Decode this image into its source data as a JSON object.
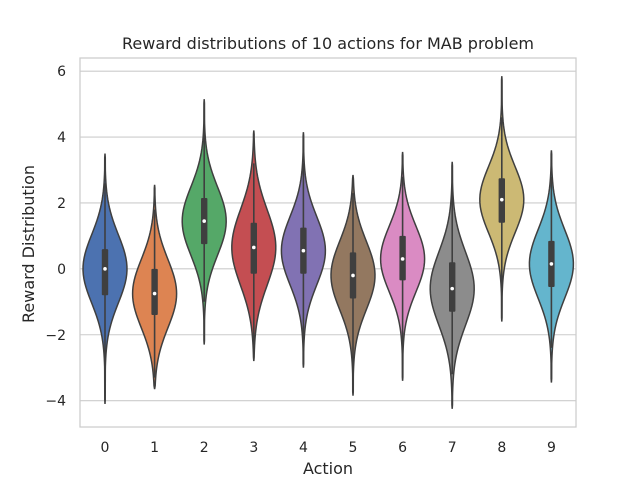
{
  "chart_data": {
    "type": "violin",
    "title": "Reward distributions of 10 actions for MAB problem",
    "xlabel": "Action",
    "ylabel": "Reward Distribution",
    "ylim": [
      -4.8,
      6.4
    ],
    "yticks": [
      -4,
      -2,
      0,
      2,
      4,
      6
    ],
    "ytick_labels": [
      "−4",
      "−2",
      "0",
      "2",
      "4",
      "6"
    ],
    "categories": [
      "0",
      "1",
      "2",
      "3",
      "4",
      "5",
      "6",
      "7",
      "8",
      "9"
    ],
    "grid": true,
    "series": [
      {
        "category": "0",
        "color": "#4c72b0",
        "min": -4.1,
        "max": 3.5,
        "q1": -0.8,
        "median": 0.0,
        "q3": 0.6,
        "whisker_low": -2.7,
        "whisker_high": 2.6
      },
      {
        "category": "1",
        "color": "#dd8452",
        "min": -3.65,
        "max": 2.55,
        "q1": -1.4,
        "median": -0.75,
        "q3": 0.0,
        "whisker_low": -3.3,
        "whisker_high": 1.8
      },
      {
        "category": "2",
        "color": "#55a868",
        "min": -2.3,
        "max": 5.15,
        "q1": 0.75,
        "median": 1.45,
        "q3": 2.15,
        "whisker_low": -1.0,
        "whisker_high": 4.3
      },
      {
        "category": "3",
        "color": "#c44e52",
        "min": -2.8,
        "max": 4.2,
        "q1": -0.15,
        "median": 0.65,
        "q3": 1.4,
        "whisker_low": -2.3,
        "whisker_high": 3.2
      },
      {
        "category": "4",
        "color": "#8172b3",
        "min": -3.0,
        "max": 4.15,
        "q1": -0.15,
        "median": 0.55,
        "q3": 1.25,
        "whisker_low": -2.3,
        "whisker_high": 3.2
      },
      {
        "category": "5",
        "color": "#937860",
        "min": -3.85,
        "max": 2.85,
        "q1": -0.9,
        "median": -0.2,
        "q3": 0.5,
        "whisker_low": -3.0,
        "whisker_high": 2.3
      },
      {
        "category": "6",
        "color": "#da8bc3",
        "min": -3.4,
        "max": 3.55,
        "q1": -0.35,
        "median": 0.3,
        "q3": 1.0,
        "whisker_low": -2.6,
        "whisker_high": 2.8
      },
      {
        "category": "7",
        "color": "#8c8c8c",
        "min": -4.25,
        "max": 3.25,
        "q1": -1.3,
        "median": -0.6,
        "q3": 0.2,
        "whisker_low": -3.2,
        "whisker_high": 2.3
      },
      {
        "category": "8",
        "color": "#ccb974",
        "min": -1.6,
        "max": 5.85,
        "q1": 1.4,
        "median": 2.1,
        "q3": 2.75,
        "whisker_low": -0.5,
        "whisker_high": 4.6
      },
      {
        "category": "9",
        "color": "#64b5cd",
        "min": -3.45,
        "max": 3.6,
        "q1": -0.55,
        "median": 0.15,
        "q3": 0.85,
        "whisker_low": -2.4,
        "whisker_high": 2.8
      }
    ]
  }
}
